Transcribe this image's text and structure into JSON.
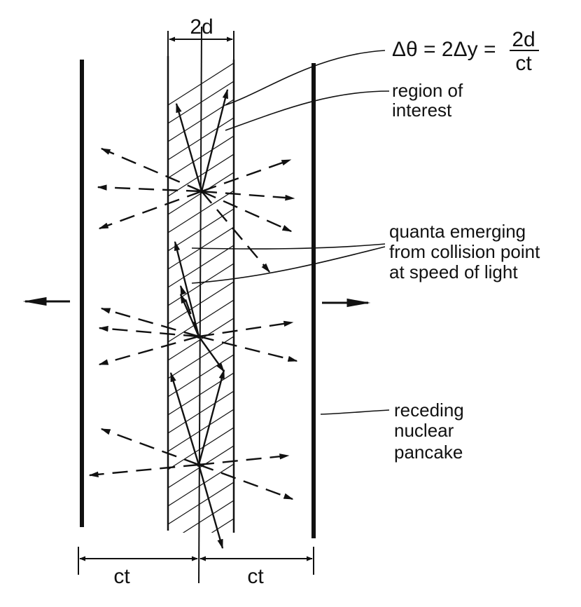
{
  "labels": {
    "gap_width": "2d",
    "formula_lhs": "Δθ = 2Δy =",
    "formula_num": "2d",
    "formula_den": "ct",
    "region_line1": "region of",
    "region_line2": "interest",
    "quanta_line1": "quanta emerging",
    "quanta_line2": "from collision point",
    "quanta_line3": "at speed of light",
    "pancake_line1": "receding",
    "pancake_line2": "nuclear",
    "pancake_line3": "pancake",
    "ct_left": "ct",
    "ct_right": "ct"
  },
  "colors": {
    "ink": "#111111",
    "background": "#ffffff"
  }
}
